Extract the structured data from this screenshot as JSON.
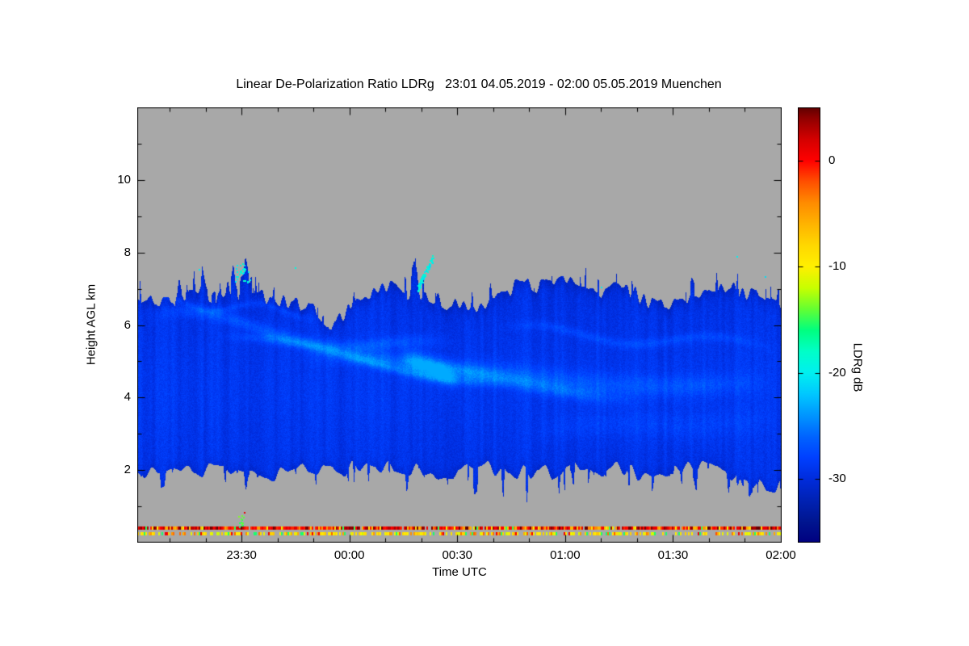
{
  "chart_data": {
    "type": "heatmap",
    "title": "Linear De-Polarization Ratio LDRg   23:01 04.05.2019 - 02:00 05.05.2019 Muenchen",
    "station": "Muenchen",
    "time_range": "23:01 04.05.2019 - 02:00 05.05.2019",
    "xlabel": "Time UTC",
    "ylabel": "Height AGL km",
    "x_axis": {
      "start": "23:01",
      "end": "02:00",
      "span_minutes": 179,
      "minor_step_min": 10,
      "first_minor_offset_min": 9,
      "ticks": [
        {
          "label": "23:30",
          "min": 29
        },
        {
          "label": "00:00",
          "min": 59
        },
        {
          "label": "00:30",
          "min": 89
        },
        {
          "label": "01:00",
          "min": 119
        },
        {
          "label": "01:30",
          "min": 149
        },
        {
          "label": "02:00",
          "min": 179
        }
      ]
    },
    "y_axis": {
      "range_km": [
        0,
        12
      ],
      "ticks": [
        2,
        4,
        6,
        8,
        10
      ],
      "minor_step_km": 1
    },
    "no_data_color": "#a8a8a8",
    "colorbar": {
      "label": "LDRg dB",
      "ticks": [
        0,
        -10,
        -20,
        -30
      ],
      "vmax": 5,
      "vmin": -36,
      "stops": [
        [
          5,
          "#600000"
        ],
        [
          4,
          "#900000"
        ],
        [
          2,
          "#d40000"
        ],
        [
          0,
          "#ff0000"
        ],
        [
          -2,
          "#ff5000"
        ],
        [
          -4,
          "#ff8c00"
        ],
        [
          -6,
          "#ffb400"
        ],
        [
          -8,
          "#ffd800"
        ],
        [
          -10,
          "#fff000"
        ],
        [
          -12,
          "#c8ff00"
        ],
        [
          -14,
          "#64ff32"
        ],
        [
          -16,
          "#00ff80"
        ],
        [
          -18,
          "#00ffc8"
        ],
        [
          -20,
          "#00f0f0"
        ],
        [
          -22,
          "#00c8ff"
        ],
        [
          -24,
          "#0096ff"
        ],
        [
          -26,
          "#0064ff"
        ],
        [
          -28,
          "#0040ff"
        ],
        [
          -30,
          "#002cdc"
        ],
        [
          -32,
          "#0022b4"
        ],
        [
          -34,
          "#001690"
        ],
        [
          -36,
          "#000080"
        ]
      ]
    },
    "cloud_layer": {
      "description": "Continuous cloud layer between about 2 and 7 km AGL, LDRg mostly -32 to -26 dB (blue) with brighter filament streaks of -26 to -23 dB; grey elsewhere means no data",
      "top_km_mean": 6.75,
      "base_km_mean": 1.95,
      "base_value_db": -29.8,
      "mid_brightening": {
        "center_km": 4.2,
        "sigma_km": 2.6,
        "amp_db": 1.0
      },
      "top_dip": {
        "t": 0.295,
        "depth_km": 0.5,
        "sigma_t": 0.035
      },
      "finger_zones": [
        {
          "t0": 0.415,
          "t1": 0.475,
          "max_extra_km": 1.1
        },
        {
          "t0": 0.145,
          "t1": 0.185,
          "max_extra_km": 0.6
        }
      ],
      "base_slope_right": {
        "t_start": 0.9,
        "drop_km": 0.5
      }
    },
    "filaments": [
      {
        "t0": 0.0,
        "t1": 0.5,
        "h0": 6.3,
        "h1": 5.25,
        "w": 0.18,
        "amp": 2.2,
        "wf": 1.3,
        "wa": 0.25
      },
      {
        "t0": 0.12,
        "t1": 0.58,
        "h0": 5.7,
        "h1": 4.4,
        "w": 0.14,
        "amp": 2.6,
        "wf": 1.0,
        "wa": 0.18
      },
      {
        "t0": 0.25,
        "t1": 0.78,
        "h0": 5.2,
        "h1": 4.05,
        "w": 0.22,
        "amp": 2.8,
        "wf": 0.8,
        "wa": 0.15
      },
      {
        "t0": 0.4,
        "t1": 1.0,
        "h0": 4.7,
        "h1": 4.3,
        "w": 0.3,
        "amp": 2.0,
        "wf": 1.2,
        "wa": 0.12
      },
      {
        "t0": 0.55,
        "t1": 1.0,
        "h0": 5.9,
        "h1": 5.4,
        "w": 0.13,
        "amp": 1.6,
        "wf": 1.6,
        "wa": 0.18
      },
      {
        "t0": 0.41,
        "t1": 0.5,
        "h0": 5.15,
        "h1": 4.45,
        "w": 0.3,
        "amp": 3.6,
        "wf": 0.5,
        "wa": 0.05
      },
      {
        "t0": 0.0,
        "t1": 0.3,
        "h0": 6.7,
        "h1": 6.3,
        "w": 0.1,
        "amp": 1.5,
        "wf": 2.0,
        "wa": 0.15
      },
      {
        "t0": 0.6,
        "t1": 1.0,
        "h0": 3.05,
        "h1": 3.45,
        "w": 0.35,
        "amp": 0.9,
        "wf": 1.0,
        "wa": 0.1
      }
    ],
    "specks": {
      "description": "Isolated cyan pixels (about -20 dB) near 7-8 km around 23:30 and 00:20, plus green specks near 0.6 km at 23:30",
      "clusters": [
        {
          "t": 0.163,
          "h": 7.45,
          "dt": 0.012,
          "dh": 0.28,
          "n": 30,
          "v_min": -21,
          "v_max": -18,
          "diag": 0
        },
        {
          "t": 0.447,
          "h": 7.45,
          "dt": 0.012,
          "dh": 0.3,
          "n": 80,
          "v_min": -21,
          "v_max": -18,
          "diag": 36
        },
        {
          "t": 0.16,
          "h": 0.62,
          "dt": 0.004,
          "dh": 0.18,
          "n": 14,
          "v_min": -16,
          "v_max": -13,
          "diag": 0
        }
      ],
      "singles": [
        {
          "t": 0.095,
          "h": 7.55,
          "v": -20
        },
        {
          "t": 0.245,
          "h": 7.6,
          "v": -19
        },
        {
          "t": 0.72,
          "h": 7.05,
          "v": -20
        },
        {
          "t": 0.931,
          "h": 7.9,
          "v": -20
        },
        {
          "t": 0.975,
          "h": 7.35,
          "v": -21
        },
        {
          "t": 0.166,
          "h": 0.84,
          "v": 1
        }
      ]
    },
    "clutter_rows": [
      {
        "h_bottom_km": 0.36,
        "h_top_km": 0.46,
        "description": "near-surface stripe, mostly red/dark red -2 to +5 dB with orange/yellow specks"
      },
      {
        "h_bottom_km": 0.21,
        "h_top_km": 0.3,
        "description": "speckled yellow/orange stripe -13 to -4 dB with grey gaps"
      }
    ]
  }
}
